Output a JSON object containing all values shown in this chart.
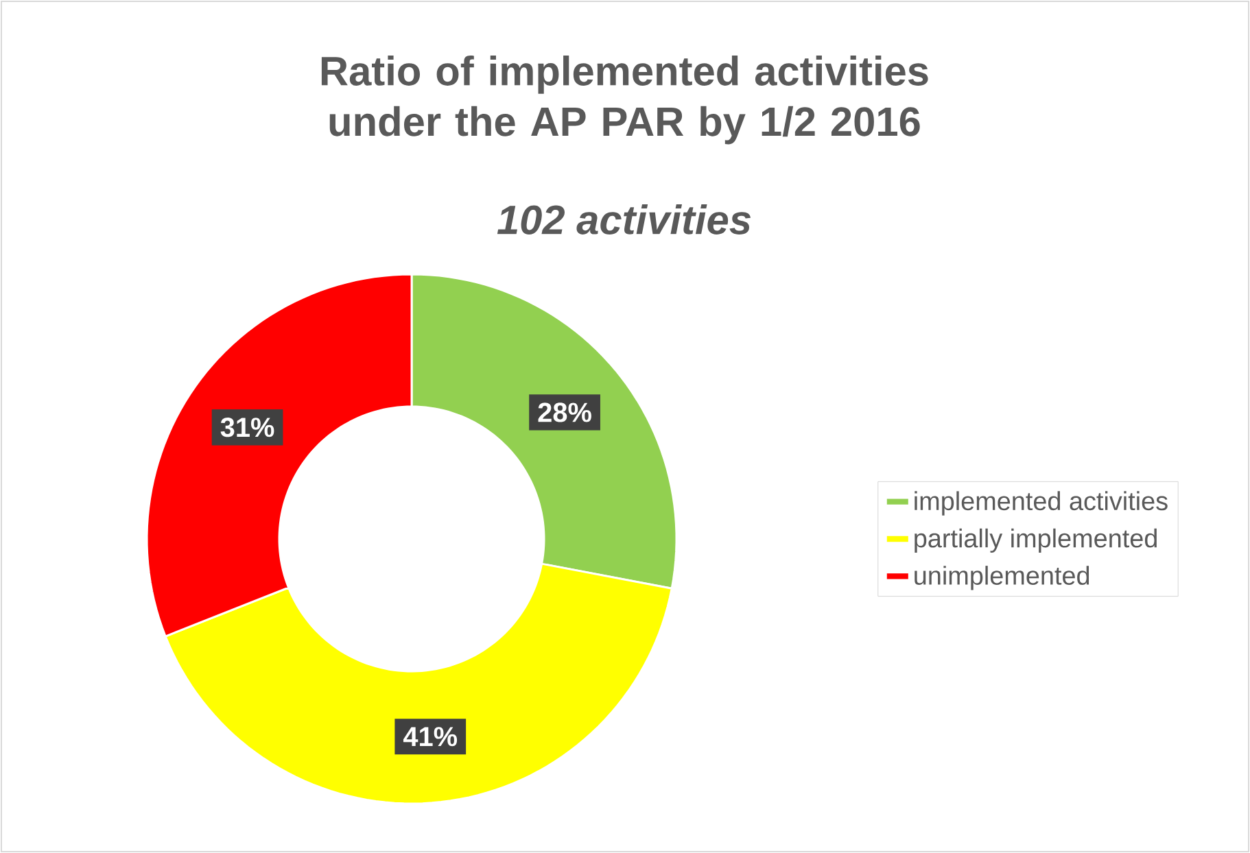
{
  "chart_data": {
    "type": "donut",
    "title": "Ratio of implemented activities under the AP PAR by 1/2 2016",
    "subtitle": "102 activities",
    "categories": [
      "implemented activities",
      "partially implemented",
      "unimplemented"
    ],
    "values": [
      28,
      41,
      31
    ],
    "value_labels": [
      "28%",
      "41%",
      "31%"
    ],
    "colors": [
      "#92d050",
      "#ffff00",
      "#ff0000"
    ],
    "legend": "right"
  }
}
